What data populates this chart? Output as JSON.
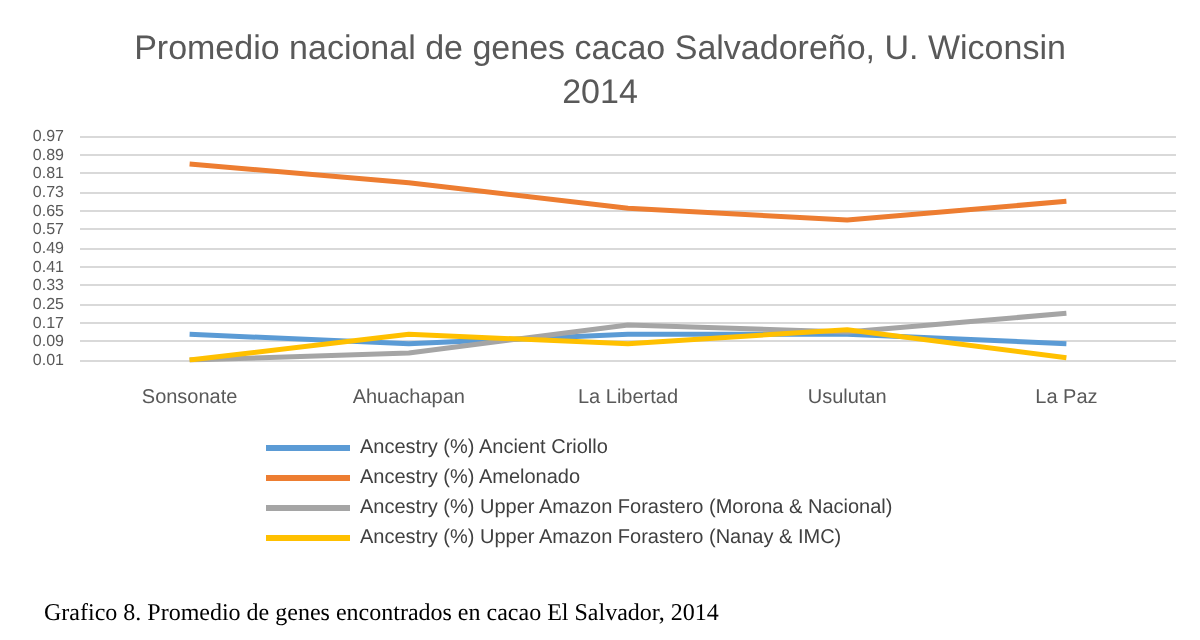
{
  "chart_data": {
    "type": "line",
    "title": "Promedio nacional de genes cacao Salvadoreño, U. Wiconsin\n2014",
    "categories": [
      "Sonsonate",
      "Ahuachapan",
      "La Libertad",
      "Usulutan",
      "La Paz"
    ],
    "series": [
      {
        "name": "Ancestry (%) Ancient Criollo",
        "color": "#5b9bd5",
        "values": [
          0.12,
          0.08,
          0.12,
          0.12,
          0.08
        ]
      },
      {
        "name": "Ancestry (%) Amelonado",
        "color": "#ed7d31",
        "values": [
          0.85,
          0.77,
          0.66,
          0.61,
          0.69
        ]
      },
      {
        "name": "Ancestry (%) Upper Amazon Forastero (Morona & Nacional)",
        "color": "#a5a5a5",
        "values": [
          0.01,
          0.04,
          0.16,
          0.13,
          0.21
        ]
      },
      {
        "name": "Ancestry (%) Upper Amazon Forastero (Nanay & IMC)",
        "color": "#ffc000",
        "values": [
          0.01,
          0.12,
          0.08,
          0.14,
          0.02
        ]
      }
    ],
    "ylim": [
      0.01,
      0.97
    ],
    "yticks": [
      0.01,
      0.09,
      0.17,
      0.25,
      0.33,
      0.41,
      0.49,
      0.57,
      0.65,
      0.73,
      0.81,
      0.89,
      0.97
    ],
    "grid": "y",
    "legend": "bottom",
    "marker": "none",
    "line_style": "solid",
    "annotations": [
      "Grafico 8. Promedio de genes encontrados en cacao El Salvador, 2014"
    ]
  }
}
